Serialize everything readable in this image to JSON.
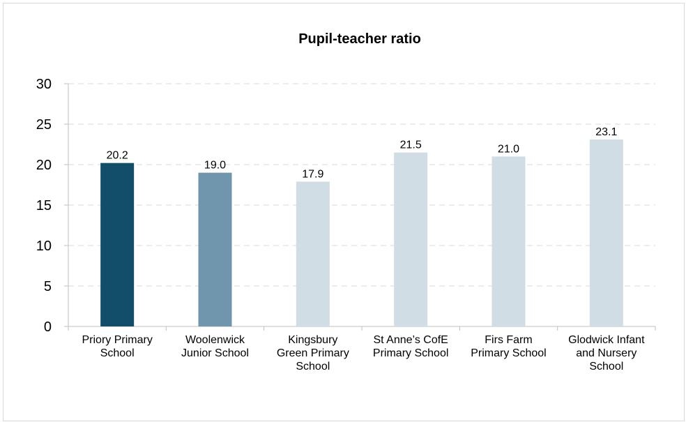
{
  "chart_data": {
    "type": "bar",
    "title": "Pupil-teacher ratio",
    "xlabel": "",
    "ylabel": "",
    "categories": [
      [
        "Priory Primary",
        "School"
      ],
      [
        "Woolenwick",
        "Junior School"
      ],
      [
        "Kingsbury",
        "Green Primary",
        "School"
      ],
      [
        "St Anne’s CofE",
        "Primary School"
      ],
      [
        "Firs Farm",
        "Primary School"
      ],
      [
        "Glodwick Infant",
        "and Nursery",
        "School"
      ]
    ],
    "values": [
      20.2,
      19.0,
      17.9,
      21.5,
      21.0,
      23.1
    ],
    "data_labels": [
      "20.2",
      "19.0",
      "17.9",
      "21.5",
      "21.0",
      "23.1"
    ],
    "bar_colors": [
      "#124d69",
      "#7096ad",
      "#d0dde5",
      "#d0dde5",
      "#d0dde5",
      "#d0dde5"
    ],
    "ylim": [
      0,
      30
    ],
    "yticks": [
      0,
      5,
      10,
      15,
      20,
      25,
      30
    ],
    "grid": true,
    "grid_style": "dashed",
    "legend": "none"
  }
}
